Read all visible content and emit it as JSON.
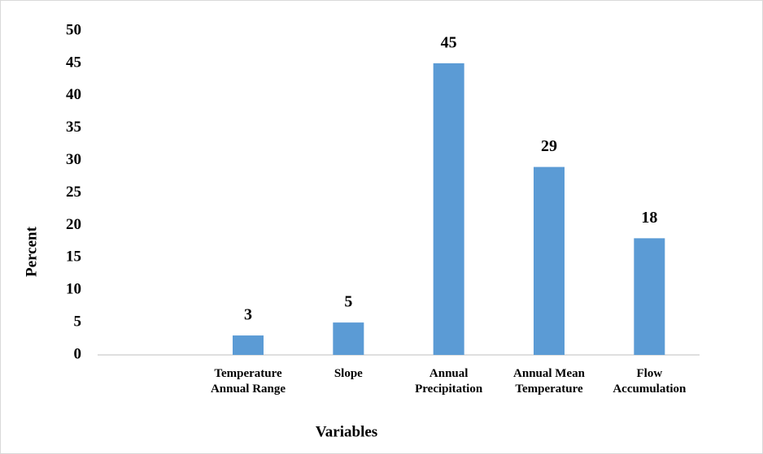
{
  "chart_data": {
    "type": "bar",
    "x_label": "Variables",
    "y_label": "Percent",
    "categories": [
      null,
      "Temperature Annual Range",
      "Slope",
      "Annual Precipitation",
      "Annual Mean Temperature",
      "Flow Accumulation"
    ],
    "values": [
      null,
      3,
      5,
      45,
      29,
      18
    ],
    "color": "#5b9bd5",
    "ylim": [
      0,
      50
    ],
    "yticks": [
      0,
      5,
      10,
      15,
      20,
      25,
      30,
      35,
      40,
      45,
      50
    ],
    "grid": false,
    "data_labels": true
  }
}
